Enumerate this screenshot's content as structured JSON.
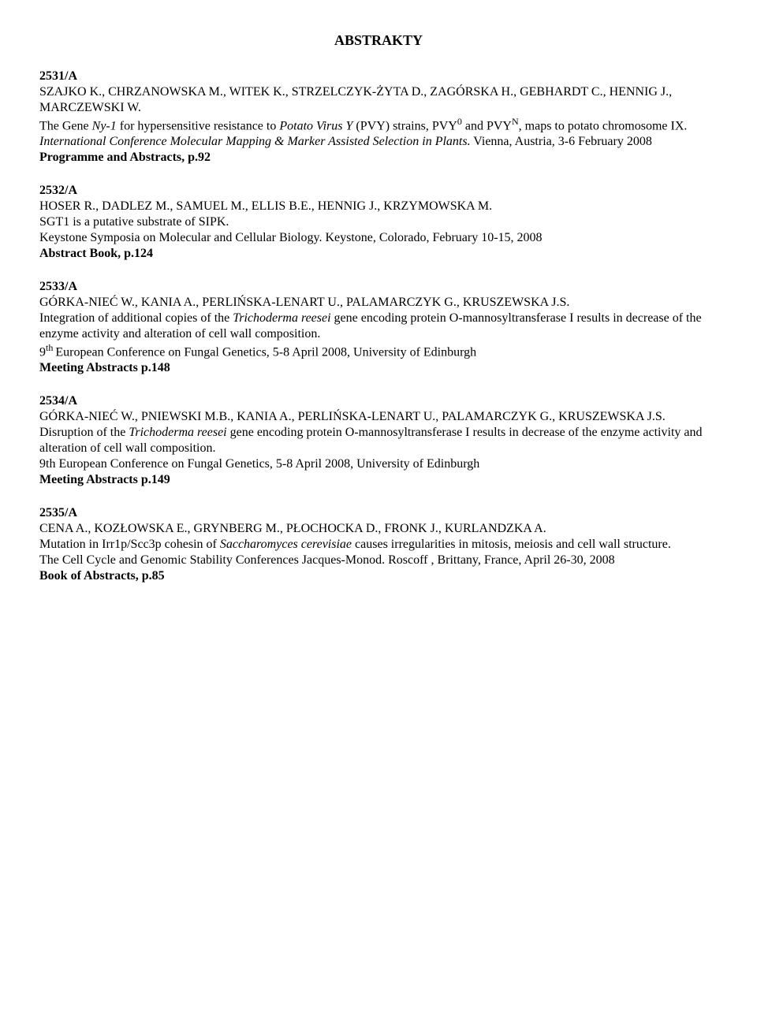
{
  "page_title": "ABSTRAKTY",
  "entries": [
    {
      "id": "2531/A",
      "authors": "SZAJKO K., CHRZANOWSKA M., WITEK K., STRZELCZYK-ŻYTA D., ZAGÓRSKA H., GEBHARDT C., HENNIG J., MARCZEWSKI W.",
      "title_pre": "The Gene ",
      "title_ital_1": "Ny-1",
      "title_mid_1": " for hypersensitive resistance to ",
      "title_ital_2": "Potato Virus Y",
      "title_mid_2": " (PVY) strains, PVY",
      "sup_1": "0",
      "title_mid_3": " and PVY",
      "sup_2": "N",
      "title_mid_4": ", maps to potato chromosome IX.",
      "subtitle_ital": "International Conference Molecular Mapping & Marker Assisted Selection in Plants.",
      "subtitle_tail": " Vienna, Austria, 3-6 February 2008",
      "ref": "Programme and Abstracts, p.92"
    },
    {
      "id": "2532/A",
      "authors": "HOSER R., DADLEZ M., SAMUEL M., ELLIS B.E., HENNIG J., KRZYMOWSKA M.",
      "title_plain": "SGT1 is a putative substrate of SIPK.",
      "subtitle": "Keystone Symposia on Molecular and Cellular Biology. Keystone, Colorado, February 10-15, 2008",
      "ref": "Abstract Book, p.124"
    },
    {
      "id": "2533/A",
      "authors": "GÓRKA-NIEĆ W., KANIA A., PERLIŃSKA-LENART U., PALAMARCZYK G., KRUSZEWSKA J.S.",
      "title_pre": "Integration of additional copies of the ",
      "title_ital_1": "Trichoderma reesei",
      "title_mid_1": " gene encoding protein O-mannosyltransferase I results in decrease of the enzyme activity and alteration of cell wall composition.",
      "subtitle_pre": "9",
      "subtitle_sup": "th ",
      "subtitle_tail": "European Conference on Fungal Genetics, 5-8 April 2008, University of Edinburgh",
      "ref": "Meeting Abstracts p.148"
    },
    {
      "id": "2534/A",
      "authors": "GÓRKA-NIEĆ W., PNIEWSKI M.B., KANIA A., PERLIŃSKA-LENART U., PALAMARCZYK G., KRUSZEWSKA J.S.",
      "title_pre": "Disruption of the ",
      "title_ital_1": "Trichoderma reesei",
      "title_mid_1": " gene encoding protein O-mannosyltransferase I results in decrease of the enzyme activity and alteration of cell wall composition.",
      "subtitle": "9th European Conference on Fungal Genetics, 5-8 April 2008, University of Edinburgh",
      "ref": "Meeting Abstracts p.149"
    },
    {
      "id": "2535/A",
      "authors": "CENA A., KOZŁOWSKA E., GRYNBERG M., PŁOCHOCKA D., FRONK J., KURLANDZKA A.",
      "title_pre": "Mutation in Irr1p/Scc3p cohesin of ",
      "title_ital_1": "Saccharomyces cerevisiae",
      "title_mid_1": " causes irregularities in mitosis, meiosis and cell wall structure.",
      "subtitle": "The Cell Cycle and Genomic Stability Conferences Jacques-Monod. Roscoff , Brittany, France,  April 26-30, 2008",
      "ref": "Book of Abstracts, p.85"
    }
  ]
}
